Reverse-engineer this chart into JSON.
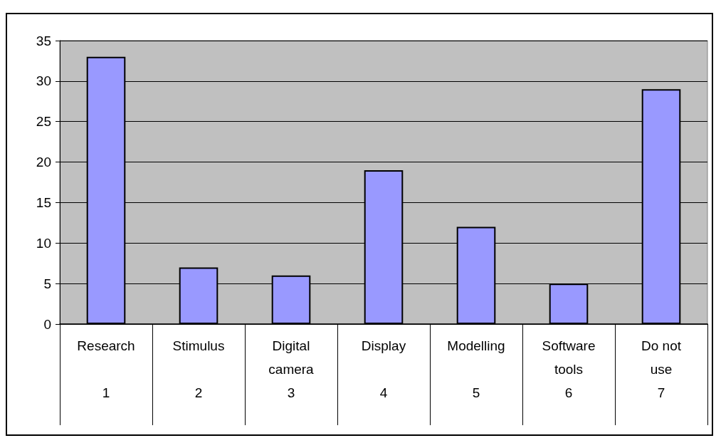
{
  "chart_data": {
    "type": "bar",
    "categories": [
      "Research\n\n1",
      "Stimulus\n\n2",
      "Digital\ncamera\n3",
      "Display\n\n4",
      "Modelling\n\n5",
      "Software\ntools\n6",
      "Do not\nuse\n7"
    ],
    "values": [
      33,
      7,
      6,
      19,
      12,
      5,
      29
    ],
    "color": "#9999ff",
    "ylim": [
      0,
      35
    ],
    "yticks": [
      0,
      5,
      10,
      15,
      20,
      25,
      30,
      35
    ],
    "grid": "y"
  }
}
